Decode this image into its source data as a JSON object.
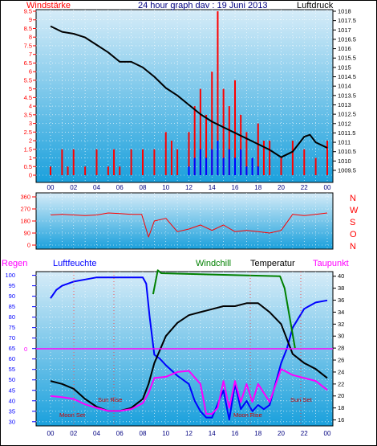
{
  "header": {
    "left_label": "Windstärke",
    "title": "24 hour graph dav : 19 Juni 2013",
    "right_label": "Luftdruck"
  },
  "wind_dir_labels": [
    "N",
    "W",
    "S",
    "O",
    "N"
  ],
  "bottom_labels": {
    "regen": "Regen",
    "luftfeuchte": "Luftfeuchte",
    "windchill": "Windchill",
    "temperatur": "Temperatur",
    "taupunkt": "Taupunkt"
  },
  "annotations": {
    "sun_rise": "Sun Rise",
    "sun_set": "Sun Set",
    "moon_set": "Moon Set",
    "moon_rise": "Moon Rise",
    "rain_zero": "0"
  },
  "colors": {
    "bg_top": "#d6ecf8",
    "bg_bottom": "#1aa0dc",
    "wind": "#ff0000",
    "gust": "#0000ff",
    "pressure": "#000000",
    "humidity": "#0000ff",
    "temperature": "#000000",
    "dewpoint": "#ff00ff",
    "windchill": "#008000",
    "rain_line": "#ff00ff"
  },
  "chart_data": [
    {
      "type": "line",
      "title": "24 hour graph dav : 19 Juni 2013",
      "x_ticks": [
        "00",
        "02",
        "04",
        "06",
        "08",
        "10",
        "12",
        "14",
        "16",
        "18",
        "20",
        "22",
        "00"
      ],
      "left_axis": {
        "label": "Windstärke",
        "ticks": [
          "0",
          "0.5",
          "1",
          "1.5",
          "2",
          "2.5",
          "3",
          "3.5",
          "4",
          "4.5",
          "5",
          "5.5",
          "6",
          "6.5",
          "7",
          "7.5",
          "8",
          "8.5",
          "9",
          "9.5"
        ],
        "range": [
          0,
          9.5
        ]
      },
      "right_axis": {
        "label": "Luftdruck",
        "ticks": [
          "1009.5",
          "1010",
          "1010.5",
          "1011",
          "1011.5",
          "1012",
          "1012.5",
          "1013",
          "1013.5",
          "1014",
          "1014.5",
          "1015",
          "1015.5",
          "1016",
          "1016.5",
          "1017",
          "1017.5",
          "1018"
        ],
        "range": [
          1009.5,
          1018
        ]
      },
      "pressure": {
        "x": [
          0,
          1,
          2,
          3,
          4,
          5,
          6,
          7,
          8,
          9,
          10,
          11,
          12,
          13,
          14,
          15,
          16,
          17,
          18,
          19,
          20,
          21,
          22,
          22.5,
          23,
          24
        ],
        "y": [
          1017.2,
          1016.9,
          1016.8,
          1016.6,
          1016.2,
          1015.8,
          1015.3,
          1015.3,
          1015.0,
          1014.5,
          1013.9,
          1013.5,
          1013.0,
          1012.5,
          1012.1,
          1011.8,
          1011.5,
          1011.2,
          1010.9,
          1010.6,
          1010.2,
          1010.5,
          1011.3,
          1011.4,
          1011.0,
          1010.7
        ]
      },
      "wind": {
        "x": [
          0,
          1,
          1.5,
          2,
          3,
          4,
          5,
          5.5,
          6,
          7,
          8,
          9,
          10,
          10.5,
          11,
          12,
          12.5,
          13,
          13.5,
          14,
          14.5,
          15,
          15.5,
          16,
          16.5,
          17,
          18,
          18.5,
          19,
          20,
          21,
          22,
          23,
          24
        ],
        "y": [
          0.5,
          1.5,
          0.5,
          1.5,
          0.5,
          1.5,
          0.5,
          1.5,
          0.5,
          1.5,
          1.5,
          1.5,
          2.5,
          2.0,
          1.5,
          2.5,
          4.0,
          5.0,
          3.5,
          6.0,
          9.5,
          5.0,
          4.0,
          5.5,
          3.5,
          2.5,
          3.0,
          2.0,
          2.0,
          1.0,
          2.0,
          1.5,
          1.0,
          2.0
        ]
      },
      "gust": {
        "x": [
          12,
          12.5,
          13,
          13.5,
          14,
          14.5,
          15,
          15.5,
          16,
          16.5,
          17,
          17.5,
          18
        ],
        "y": [
          0.5,
          1.0,
          1.5,
          1.0,
          1.5,
          2.0,
          1.0,
          1.5,
          1.0,
          1.5,
          0.5,
          1.0,
          0.5
        ]
      }
    },
    {
      "type": "line",
      "x_ticks": [
        "00",
        "02",
        "04",
        "06",
        "08",
        "10",
        "12",
        "14",
        "16",
        "18",
        "20",
        "22",
        "00"
      ],
      "left_axis": {
        "ticks": [
          "0",
          "90",
          "180",
          "270",
          "360"
        ],
        "range": [
          0,
          360
        ]
      },
      "wind_direction": {
        "x": [
          0,
          1,
          2,
          3,
          4,
          5,
          6,
          7,
          7.9,
          8.5,
          9,
          10,
          11,
          12,
          13,
          14,
          15,
          16,
          17,
          18,
          19,
          20,
          21,
          22,
          23,
          24
        ],
        "y": [
          225,
          230,
          225,
          220,
          225,
          240,
          235,
          230,
          230,
          60,
          180,
          200,
          100,
          120,
          150,
          110,
          150,
          100,
          110,
          100,
          90,
          110,
          230,
          220,
          230,
          240
        ]
      }
    },
    {
      "type": "line",
      "x_ticks": [
        "00",
        "02",
        "04",
        "06",
        "08",
        "10",
        "12",
        "14",
        "16",
        "18",
        "20",
        "22",
        "00"
      ],
      "left_axis": {
        "label": "Luftfeuchte",
        "ticks": [
          "30",
          "35",
          "40",
          "45",
          "50",
          "55",
          "60",
          "65",
          "70",
          "75",
          "80",
          "85",
          "90",
          "95",
          "100"
        ],
        "range": [
          28,
          101
        ]
      },
      "right_axis": {
        "label": "Temperatur",
        "ticks": [
          "16",
          "18",
          "20",
          "22",
          "24",
          "26",
          "28",
          "30",
          "32",
          "34",
          "36",
          "38",
          "40"
        ],
        "range": [
          15,
          40.5
        ]
      },
      "series": [
        {
          "name": "Luftfeuchte",
          "x": [
            0,
            0.5,
            1,
            2,
            3,
            4,
            5,
            6,
            7,
            8,
            8.3,
            8.6,
            9,
            9.5,
            10,
            11,
            12,
            12.5,
            13,
            13.5,
            14,
            15,
            15.5,
            16,
            16.5,
            17,
            17.5,
            18,
            18.5,
            19,
            20,
            20.5,
            21,
            22,
            23,
            24
          ],
          "y": [
            89,
            93,
            95,
            97,
            98,
            99,
            99,
            99,
            99,
            99,
            96,
            80,
            62,
            60,
            57,
            52,
            48,
            40,
            35,
            32,
            32,
            45,
            31,
            48,
            36,
            40,
            35,
            38,
            36,
            38,
            58,
            65,
            75,
            84,
            87,
            88
          ]
        },
        {
          "name": "Temperatur",
          "x": [
            0,
            1,
            2,
            3,
            4,
            5,
            6,
            7,
            8,
            8.5,
            9,
            10,
            11,
            12,
            13,
            14,
            15,
            16,
            17,
            18,
            19,
            20,
            21,
            22,
            23,
            24
          ],
          "y": [
            22.5,
            22,
            21.2,
            19.5,
            18.2,
            17.5,
            17.5,
            18,
            19.5,
            22,
            25.5,
            30,
            32.2,
            33.5,
            34,
            34.5,
            35,
            35,
            35.5,
            35.5,
            34,
            32,
            27,
            25.5,
            24.5,
            23
          ]
        },
        {
          "name": "Taupunkt",
          "x": [
            0,
            1,
            2,
            3,
            4,
            5,
            6,
            7,
            8,
            8.5,
            9,
            10,
            11,
            12,
            13,
            13.5,
            14,
            14.5,
            15,
            15.5,
            16,
            16.5,
            17,
            17.5,
            18,
            19,
            20,
            21,
            22,
            23,
            24
          ],
          "y": [
            20,
            19.8,
            19.5,
            18.6,
            18,
            17.5,
            17.5,
            17.8,
            18.8,
            20.5,
            23,
            23.2,
            24,
            24.2,
            22,
            17,
            17,
            18,
            22.5,
            18,
            22.5,
            19,
            22,
            19,
            22,
            19,
            24.5,
            23.5,
            23,
            22.5,
            21
          ]
        },
        {
          "name": "Windchill",
          "x": [
            8.9,
            9.3,
            9.6,
            19.9,
            20.3,
            21.2
          ],
          "y": [
            37,
            41,
            40.5,
            40,
            38,
            28
          ]
        }
      ],
      "rain": {
        "value": 0
      }
    }
  ]
}
